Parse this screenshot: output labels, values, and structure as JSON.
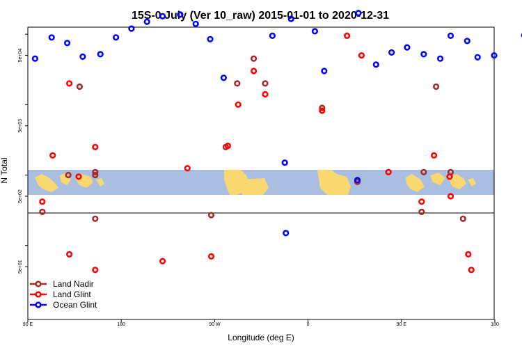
{
  "chart_data": {
    "type": "scatter",
    "title": "15S-0 July (Ver 10_raw)   2015-01-01 to 2020-12-31",
    "xlabel": "Longitude (deg E)",
    "ylabel": "N Total",
    "x_ticks": [
      {
        "value": 90,
        "label": "90 E"
      },
      {
        "value": 180,
        "label": "180"
      },
      {
        "value": 270,
        "label": "90 W"
      },
      {
        "value": 360,
        "label": "0"
      },
      {
        "value": 450,
        "label": "90 E"
      },
      {
        "value": 540,
        "label": "180"
      }
    ],
    "y_tick_labels": [
      "5e+01",
      "5e+02",
      "5e+03",
      "5e+04"
    ],
    "xlim": [
      90,
      540
    ],
    "ylim_log10": [
      0.95,
      5.1
    ],
    "y_scale": "log",
    "grid": false,
    "legend_position": "bottom-left",
    "series": [
      {
        "name": "Land Nadir",
        "color": "#a52a2a",
        "points": [
          [
            104,
            300
          ],
          [
            129,
            1000
          ],
          [
            140,
            18000
          ],
          [
            155,
            1100
          ],
          [
            155,
            1000
          ],
          [
            155,
            240
          ],
          [
            267,
            270
          ],
          [
            281,
            2500
          ],
          [
            292,
            20000
          ],
          [
            308,
            45000
          ],
          [
            319,
            20000
          ],
          [
            374,
            9000
          ],
          [
            408,
            800
          ],
          [
            470,
            300
          ],
          [
            472,
            1100
          ],
          [
            484,
            18000
          ],
          [
            498,
            1100
          ],
          [
            510,
            240
          ]
        ]
      },
      {
        "name": "Land Glint",
        "color": "#ff0000",
        "points": [
          [
            104,
            420
          ],
          [
            114,
            1900
          ],
          [
            130,
            20000
          ],
          [
            139,
            950
          ],
          [
            155,
            2500
          ],
          [
            155,
            45
          ],
          [
            130,
            75
          ],
          [
            220,
            60
          ],
          [
            244,
            1250
          ],
          [
            267,
            70
          ],
          [
            283,
            2600
          ],
          [
            293,
            10000
          ],
          [
            308,
            30000
          ],
          [
            319,
            14000
          ],
          [
            374,
            8200
          ],
          [
            398,
            95000
          ],
          [
            412,
            50000
          ],
          [
            438,
            1100
          ],
          [
            470,
            420
          ],
          [
            482,
            1900
          ],
          [
            497,
            950
          ],
          [
            498,
            500
          ],
          [
            515,
            75
          ],
          [
            518,
            45
          ]
        ]
      },
      {
        "name": "Ocean Glint",
        "color": "#0000ff",
        "points": [
          [
            97,
            45000
          ],
          [
            113,
            90000
          ],
          [
            128,
            75000
          ],
          [
            143,
            48000
          ],
          [
            160,
            52000
          ],
          [
            175,
            90000
          ],
          [
            190,
            120000
          ],
          [
            205,
            150000
          ],
          [
            220,
            180000
          ],
          [
            237,
            190000
          ],
          [
            252,
            140000
          ],
          [
            266,
            85000
          ],
          [
            279,
            24000
          ],
          [
            326,
            95000
          ],
          [
            338,
            1500
          ],
          [
            339,
            150
          ],
          [
            344,
            165000
          ],
          [
            367,
            110000
          ],
          [
            376,
            30000
          ],
          [
            408,
            850
          ],
          [
            409,
            200000
          ],
          [
            426,
            37000
          ],
          [
            441,
            55000
          ],
          [
            456,
            65000
          ],
          [
            472,
            52000
          ],
          [
            488,
            45000
          ],
          [
            498,
            95000
          ],
          [
            514,
            80000
          ],
          [
            524,
            47000
          ],
          [
            540,
            50000
          ],
          [
            569,
            96000
          ]
        ]
      }
    ]
  }
}
